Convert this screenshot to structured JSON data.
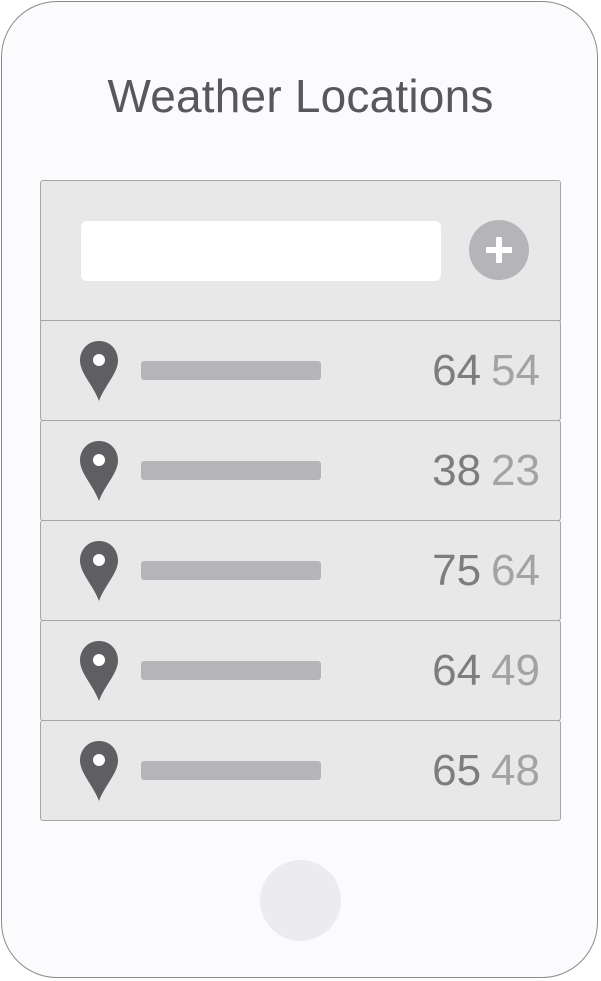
{
  "header": {
    "title": "Weather Locations"
  },
  "add_location": {
    "input_value": "",
    "placeholder": "",
    "button_icon": "plus-icon"
  },
  "locations": [
    {
      "icon": "map-pin-icon",
      "high": "64",
      "low": "54"
    },
    {
      "icon": "map-pin-icon",
      "high": "38",
      "low": "23"
    },
    {
      "icon": "map-pin-icon",
      "high": "75",
      "low": "64"
    },
    {
      "icon": "map-pin-icon",
      "high": "64",
      "low": "49"
    },
    {
      "icon": "map-pin-icon",
      "high": "65",
      "low": "48"
    }
  ],
  "colors": {
    "background": "#fbfafc",
    "row_background": "#e8e8e8",
    "row_border": "#a6a6a6",
    "placeholder_bar": "#b5b4b9",
    "pin": "#5f5e62",
    "title_text": "#58585b",
    "high_temp": "#7d7d7f",
    "low_temp": "#a3a3a5",
    "home_button": "#ececee"
  }
}
